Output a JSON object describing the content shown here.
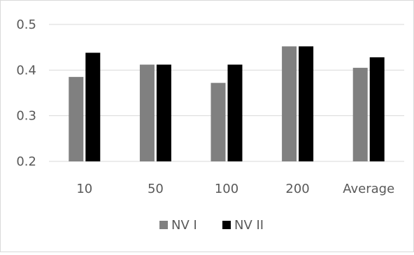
{
  "chart_data": {
    "type": "bar",
    "categories": [
      "10",
      "50",
      "100",
      "200",
      "Average"
    ],
    "series": [
      {
        "name": "NV I",
        "values": [
          0.385,
          0.412,
          0.372,
          0.452,
          0.405
        ],
        "color": "#808080"
      },
      {
        "name": "NV II",
        "values": [
          0.438,
          0.412,
          0.412,
          0.452,
          0.428
        ],
        "color": "#000000"
      }
    ],
    "ylim": [
      0.2,
      0.5
    ],
    "yticks": [
      "0.2",
      "0.3",
      "0.4",
      "0.5"
    ],
    "grid": true,
    "legend_position": "bottom"
  }
}
